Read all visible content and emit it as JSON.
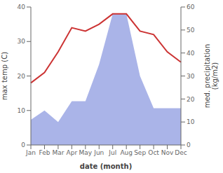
{
  "chart_data": {
    "type": "line",
    "xlabel": "date (month)",
    "ylabel": "max temp (C)",
    "y2label": "med. precipitation\n(kg/m2)",
    "categories": [
      "Jan",
      "Feb",
      "Mar",
      "Apr",
      "May",
      "Jun",
      "Jul",
      "Aug",
      "Sep",
      "Oct",
      "Nov",
      "Dec"
    ],
    "series": [
      {
        "type": "line",
        "color": "#cc3333",
        "values": [
          18,
          21,
          27,
          34,
          33,
          35,
          38,
          38,
          33,
          32,
          27,
          24
        ]
      },
      {
        "type": "area",
        "color": "#aab4e8",
        "axis": "y2",
        "values": [
          11,
          15,
          10,
          19,
          19,
          35,
          57,
          57,
          30,
          16,
          16,
          16
        ]
      }
    ],
    "ylim": [
      0,
      40
    ],
    "yticks": [
      0,
      10,
      20,
      30,
      40
    ],
    "y2lim": [
      0,
      60
    ],
    "y2ticks": [
      0,
      10,
      20,
      30,
      40,
      50,
      60
    ],
    "grid": false
  }
}
